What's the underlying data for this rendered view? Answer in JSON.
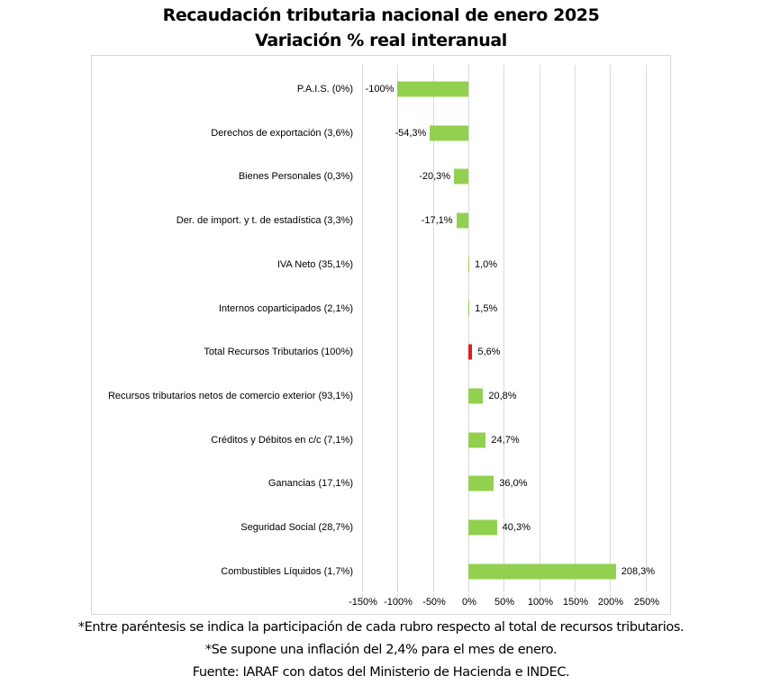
{
  "chart_data": {
    "type": "bar",
    "orientation": "horizontal",
    "title": "Recaudación tributaria nacional de enero 2025",
    "subtitle": "Variación % real interanual",
    "xlabel": "",
    "ylabel": "",
    "xlim": [
      -150,
      250
    ],
    "x_ticks": [
      "-150%",
      "-100%",
      "-50%",
      "0%",
      "50%",
      "100%",
      "150%",
      "200%",
      "250%"
    ],
    "grid": true,
    "legend": null,
    "categories": [
      "P.A.I.S. (0%)",
      "Derechos de exportación (3,6%)",
      "Bienes Personales (0,3%)",
      "Der. de import. y t. de estadística (3,3%)",
      "IVA Neto (35,1%)",
      "Internos coparticipados (2,1%)",
      "Total Recursos Tributarios (100%)",
      "Recursos tributarios netos de comercio exterior (93,1%)",
      "Créditos y Débitos en c/c (7,1%)",
      "Ganancias (17,1%)",
      "Seguridad Social (28,7%)",
      "Combustibles Líquidos (1,7%)"
    ],
    "values": [
      -100,
      -54.3,
      -20.3,
      -17.1,
      1.0,
      1.5,
      5.6,
      20.8,
      24.7,
      36.0,
      40.3,
      208.3
    ],
    "value_labels": [
      "-100%",
      "-54,3%",
      "-20,3%",
      "-17,1%",
      "1,0%",
      "1,5%",
      "5,6%",
      "20,8%",
      "24,7%",
      "36,0%",
      "40,3%",
      "208,3%"
    ],
    "bar_colors": [
      "#92d050",
      "#92d050",
      "#92d050",
      "#92d050",
      "#92d050",
      "#92d050",
      "#e31a1c",
      "#92d050",
      "#92d050",
      "#92d050",
      "#92d050",
      "#92d050"
    ],
    "highlight": "Total Recursos Tributarios (100%)"
  },
  "colors": {
    "bar": "#92d050",
    "highlight_bar": "#e31a1c",
    "grid": "#d9d9d9"
  },
  "notes": [
    "*Entre paréntesis se indica la participación de cada rubro respecto al total de recursos tributarios.",
    "*Se supone una inflación del 2,4% para el mes de enero.",
    "Fuente: IARAF con datos del Ministerio de Hacienda e INDEC."
  ]
}
